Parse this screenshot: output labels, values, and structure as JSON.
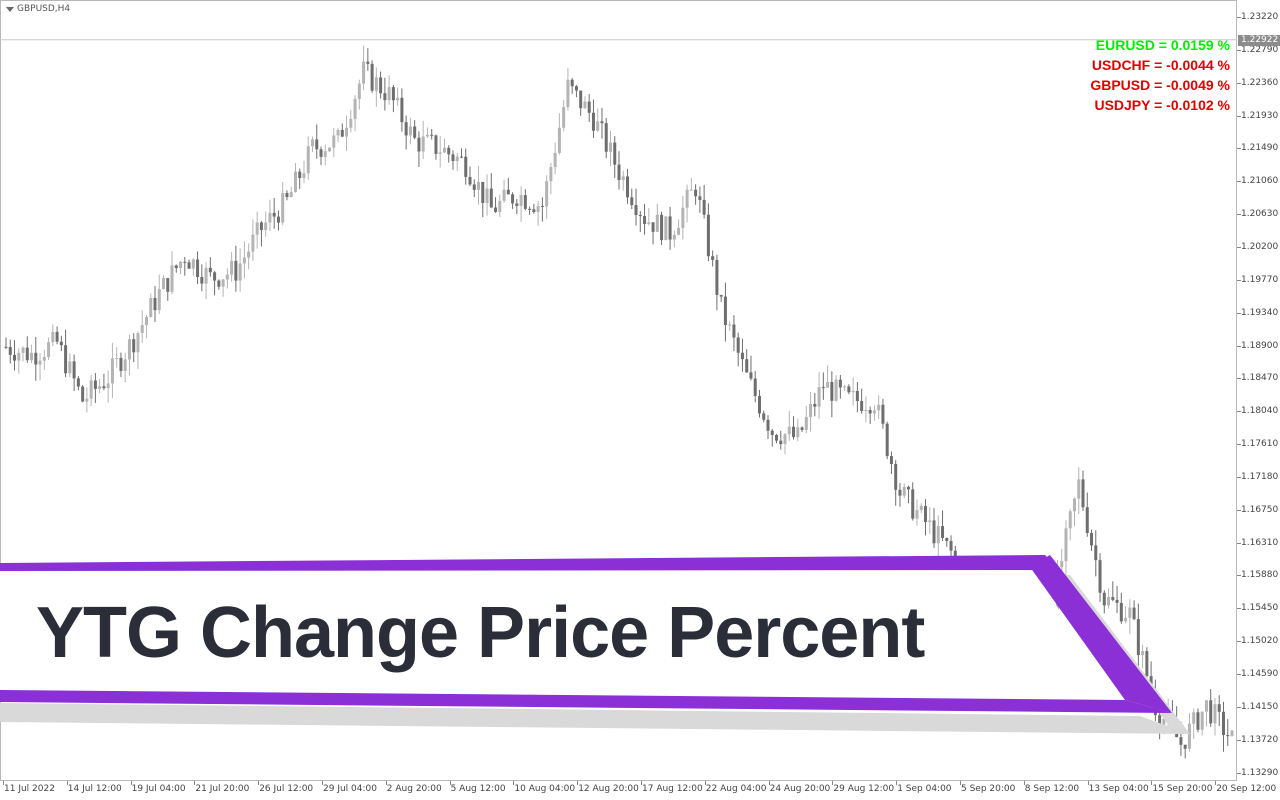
{
  "window": {
    "title": "GBPUSD,H4"
  },
  "price_axis": {
    "labels": [
      "1.23220",
      "1.22790",
      "1.22360",
      "1.21930",
      "1.21490",
      "1.21060",
      "1.20630",
      "1.20200",
      "1.19770",
      "1.19340",
      "1.18900",
      "1.18470",
      "1.18040",
      "1.17610",
      "1.17180",
      "1.16750",
      "1.16310",
      "1.15880",
      "1.15450",
      "1.15020",
      "1.14590",
      "1.14150",
      "1.13720",
      "1.13290"
    ],
    "current_price": "1.22922"
  },
  "time_axis": {
    "labels": [
      "11 Jul 2022",
      "14 Jul 12:00",
      "19 Jul 04:00",
      "21 Jul 20:00",
      "26 Jul 12:00",
      "29 Jul 04:00",
      "2 Aug 20:00",
      "5 Aug 12:00",
      "10 Aug 04:00",
      "12 Aug 20:00",
      "17 Aug 12:00",
      "22 Aug 04:00",
      "24 Aug 20:00",
      "29 Aug 12:00",
      "1 Sep 04:00",
      "5 Sep 20:00",
      "8 Sep 12:00",
      "13 Sep 04:00",
      "15 Sep 20:00",
      "20 Sep 12:00"
    ]
  },
  "change_percent": [
    {
      "symbol_text": "EURUSD = 0.0159 %",
      "color": "#00ee00"
    },
    {
      "symbol_text": "USDCHF = -0.0044 %",
      "color": "#e00000"
    },
    {
      "symbol_text": "GBPUSD = -0.0049 %",
      "color": "#e00000"
    },
    {
      "symbol_text": "USDJPY = -0.0102 %",
      "color": "#e00000"
    }
  ],
  "banner": {
    "title": "YTG Change Price Percent",
    "accent": "#8b2fd6"
  },
  "colors": {
    "bull_candle": "#b4b4b4",
    "bear_candle": "#6e6e6e",
    "text_dark": "#2b2e38"
  },
  "chart_data": {
    "type": "candlestick",
    "symbol": "GBPUSD",
    "timeframe": "H4",
    "ylim": [
      1.1329,
      1.2322
    ],
    "close_path": [
      {
        "x": "11 Jul 2022",
        "close": 1.189
      },
      {
        "x": "12 Jul",
        "close": 1.188
      },
      {
        "x": "13 Jul",
        "close": 1.1895
      },
      {
        "x": "14 Jul 12:00",
        "close": 1.182
      },
      {
        "x": "15 Jul",
        "close": 1.185
      },
      {
        "x": "18 Jul",
        "close": 1.19
      },
      {
        "x": "19 Jul 04:00",
        "close": 1.196
      },
      {
        "x": "20 Jul",
        "close": 1.201
      },
      {
        "x": "21 Jul 20:00",
        "close": 1.198
      },
      {
        "x": "22 Jul",
        "close": 1.199
      },
      {
        "x": "25 Jul",
        "close": 1.2045
      },
      {
        "x": "26 Jul 12:00",
        "close": 1.208
      },
      {
        "x": "27 Jul",
        "close": 1.215
      },
      {
        "x": "28 Jul",
        "close": 1.216
      },
      {
        "x": "29 Jul 04:00",
        "close": 1.225
      },
      {
        "x": "1 Aug",
        "close": 1.222
      },
      {
        "x": "2 Aug 20:00",
        "close": 1.216
      },
      {
        "x": "3 Aug",
        "close": 1.215
      },
      {
        "x": "4 Aug",
        "close": 1.213
      },
      {
        "x": "5 Aug 12:00",
        "close": 1.207
      },
      {
        "x": "8 Aug",
        "close": 1.209
      },
      {
        "x": "9 Aug",
        "close": 1.2075
      },
      {
        "x": "10 Aug 04:00",
        "close": 1.223
      },
      {
        "x": "11 Aug",
        "close": 1.219
      },
      {
        "x": "12 Aug 20:00",
        "close": 1.212
      },
      {
        "x": "15 Aug",
        "close": 1.206
      },
      {
        "x": "16 Aug",
        "close": 1.204
      },
      {
        "x": "17 Aug 12:00",
        "close": 1.21
      },
      {
        "x": "18 Aug",
        "close": 1.194
      },
      {
        "x": "19 Aug",
        "close": 1.185
      },
      {
        "x": "22 Aug 04:00",
        "close": 1.178
      },
      {
        "x": "23 Aug",
        "close": 1.177
      },
      {
        "x": "24 Aug 20:00",
        "close": 1.184
      },
      {
        "x": "25 Aug",
        "close": 1.182
      },
      {
        "x": "26 Aug",
        "close": 1.182
      },
      {
        "x": "29 Aug 12:00",
        "close": 1.17
      },
      {
        "x": "30 Aug",
        "close": 1.166
      },
      {
        "x": "1 Sep 04:00",
        "close": 1.162
      },
      {
        "x": "2 Sep",
        "close": 1.152
      },
      {
        "x": "5 Sep 20:00",
        "close": 1.147
      },
      {
        "x": "6 Sep",
        "close": 1.15
      },
      {
        "x": "8 Sep 12:00",
        "close": 1.156
      },
      {
        "x": "12 Sep",
        "close": 1.171
      },
      {
        "x": "13 Sep 04:00",
        "close": 1.156
      },
      {
        "x": "14 Sep",
        "close": 1.154
      },
      {
        "x": "15 Sep 20:00",
        "close": 1.142
      },
      {
        "x": "16 Sep",
        "close": 1.137
      },
      {
        "x": "19 Sep",
        "close": 1.142
      },
      {
        "x": "20 Sep 12:00",
        "close": 1.1375
      }
    ]
  }
}
